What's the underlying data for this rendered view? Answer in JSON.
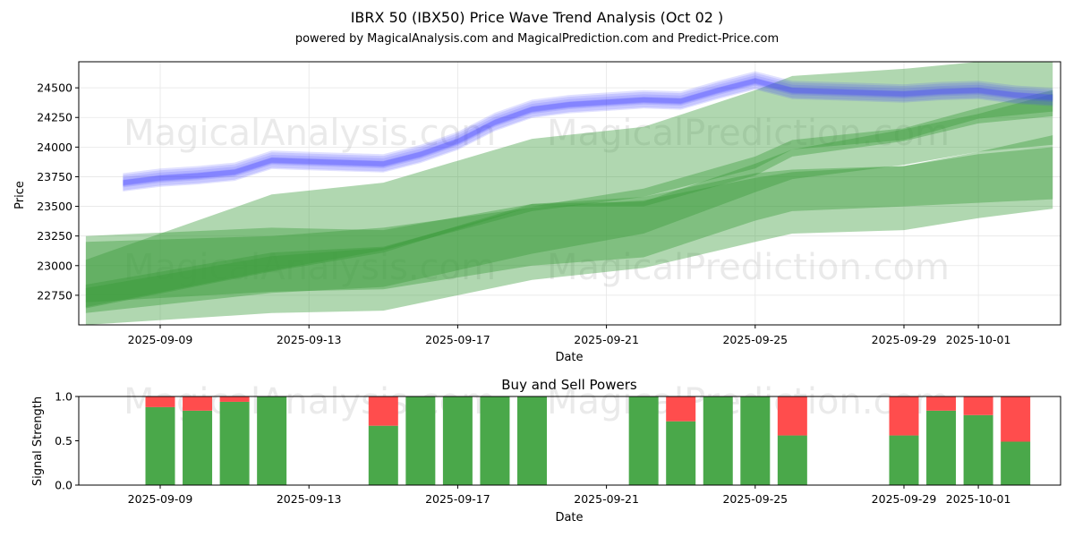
{
  "header": {
    "title": "IBRX 50 (IBX50) Price Wave Trend Analysis (Oct 02 )",
    "subtitle": "powered by MagicalAnalysis.com and MagicalPrediction.com and Predict-Price.com"
  },
  "watermarks": [
    "MagicalAnalysis.com",
    "MagicalPrediction.com",
    "MagicalAnalysis.com",
    "MagicalPrediction.com",
    "MagicalAnalysis.com",
    "MagicalPrediction.com"
  ],
  "colors": {
    "blue": "#4444ff",
    "green": "#3a9c3a",
    "buy": "#4aa84a",
    "sell": "#ff4d4d"
  },
  "chart_data": [
    {
      "type": "area",
      "title": "IBRX 50 (IBX50) Price Wave Trend Analysis (Oct 02 )",
      "xlabel": "Date",
      "ylabel": "Price",
      "ylim": [
        22500,
        24720
      ],
      "x_ticks": [
        "2025-09-09",
        "2025-09-13",
        "2025-09-17",
        "2025-09-21",
        "2025-09-25",
        "2025-09-29",
        "2025-10-01"
      ],
      "y_ticks": [
        "22750",
        "23000",
        "23250",
        "23500",
        "23750",
        "24000",
        "24250",
        "24500"
      ],
      "grid": true,
      "blue_bands": {
        "x": [
          "2025-09-08",
          "2025-09-09",
          "2025-09-10",
          "2025-09-11",
          "2025-09-12",
          "2025-09-13",
          "2025-09-14",
          "2025-09-15",
          "2025-09-16",
          "2025-09-17",
          "2025-09-18",
          "2025-09-19",
          "2025-09-20",
          "2025-09-21",
          "2025-09-22",
          "2025-09-23",
          "2025-09-24",
          "2025-09-25",
          "2025-09-26",
          "2025-09-27",
          "2025-09-28",
          "2025-09-29",
          "2025-09-30",
          "2025-10-01",
          "2025-10-02",
          "2025-10-03"
        ],
        "center": [
          23700,
          23740,
          23760,
          23790,
          23890,
          23880,
          23870,
          23860,
          23940,
          24050,
          24210,
          24320,
          24360,
          24380,
          24400,
          24390,
          24480,
          24560,
          24480,
          24470,
          24460,
          24450,
          24470,
          24480,
          24440,
          24420
        ],
        "series": [
          {
            "offset": 0,
            "width": 130
          },
          {
            "offset": 25,
            "width": 110
          },
          {
            "offset": -25,
            "width": 100
          },
          {
            "offset": 10,
            "width": 70
          },
          {
            "offset": -10,
            "width": 60
          },
          {
            "offset": 0,
            "width": 40
          }
        ]
      },
      "green_bands": [
        {
          "x": [
            "2025-09-07",
            "2025-09-12",
            "2025-09-15",
            "2025-09-19",
            "2025-09-22",
            "2025-09-25",
            "2025-09-26",
            "2025-09-29",
            "2025-10-01",
            "2025-10-03"
          ],
          "upper": [
            23050,
            23600,
            23700,
            24070,
            24170,
            24480,
            24600,
            24660,
            24720,
            24720
          ],
          "lower": [
            22600,
            22770,
            22820,
            23100,
            23270,
            23620,
            23730,
            23850,
            23960,
            24020
          ]
        },
        {
          "x": [
            "2025-09-07",
            "2025-09-12",
            "2025-09-15",
            "2025-09-19",
            "2025-09-22",
            "2025-09-25",
            "2025-09-26",
            "2025-09-29",
            "2025-10-01",
            "2025-10-03"
          ],
          "upper": [
            23200,
            23250,
            23320,
            23490,
            23550,
            23740,
            23790,
            23840,
            23940,
            24000
          ],
          "lower": [
            22690,
            22780,
            22800,
            23000,
            23070,
            23380,
            23460,
            23500,
            23530,
            23560
          ]
        },
        {
          "x": [
            "2025-09-07",
            "2025-09-12",
            "2025-09-15",
            "2025-09-19",
            "2025-09-22",
            "2025-09-25",
            "2025-09-26",
            "2025-09-29",
            "2025-10-01",
            "2025-10-03"
          ],
          "upper": [
            23250,
            23320,
            23300,
            23520,
            23580,
            23780,
            23810,
            23840,
            23960,
            24100
          ],
          "lower": [
            22500,
            22600,
            22620,
            22880,
            22980,
            23200,
            23270,
            23300,
            23400,
            23480
          ]
        },
        {
          "x": [
            "2025-09-07",
            "2025-09-12",
            "2025-09-15",
            "2025-09-19",
            "2025-09-22",
            "2025-09-25",
            "2025-09-26",
            "2025-09-29",
            "2025-10-01",
            "2025-10-03"
          ],
          "upper": [
            22840,
            23110,
            23160,
            23500,
            23650,
            23920,
            24060,
            24160,
            24330,
            24480
          ],
          "lower": [
            22650,
            22960,
            23130,
            23460,
            23580,
            23820,
            23980,
            24060,
            24240,
            24300
          ]
        },
        {
          "x": [
            "2025-09-07",
            "2025-09-12",
            "2025-09-15",
            "2025-09-19",
            "2025-09-22",
            "2025-09-25",
            "2025-09-26",
            "2025-09-29",
            "2025-10-01",
            "2025-10-03"
          ],
          "upper": [
            22810,
            23080,
            23150,
            23520,
            23540,
            23860,
            23980,
            24150,
            24280,
            24450
          ],
          "lower": [
            22640,
            22950,
            23110,
            23500,
            23500,
            23760,
            23920,
            24050,
            24200,
            24260
          ]
        }
      ]
    },
    {
      "type": "bar",
      "title": "Buy and Sell Powers",
      "xlabel": "Date",
      "ylabel": "Signal Strength",
      "ylim": [
        0,
        1
      ],
      "y_ticks": [
        "0.0",
        "0.5",
        "1.0"
      ],
      "x_ticks": [
        "2025-09-09",
        "2025-09-13",
        "2025-09-17",
        "2025-09-21",
        "2025-09-25",
        "2025-09-29",
        "2025-10-01"
      ],
      "dates": [
        "2025-09-09",
        "2025-09-10",
        "2025-09-11",
        "2025-09-12",
        "2025-09-15",
        "2025-09-16",
        "2025-09-17",
        "2025-09-18",
        "2025-09-19",
        "2025-09-22",
        "2025-09-23",
        "2025-09-24",
        "2025-09-25",
        "2025-09-26",
        "2025-09-29",
        "2025-09-30",
        "2025-10-01",
        "2025-10-02"
      ],
      "buy": [
        0.88,
        0.84,
        0.94,
        1.0,
        0.67,
        1.0,
        1.0,
        1.0,
        1.0,
        1.0,
        0.72,
        1.0,
        1.0,
        0.56,
        0.56,
        0.84,
        0.79,
        0.49
      ],
      "sell": [
        0.12,
        0.16,
        0.06,
        0.0,
        0.33,
        0.0,
        0.0,
        0.0,
        0.0,
        0.0,
        0.28,
        0.0,
        0.0,
        0.44,
        0.44,
        0.16,
        0.21,
        0.51
      ]
    }
  ]
}
